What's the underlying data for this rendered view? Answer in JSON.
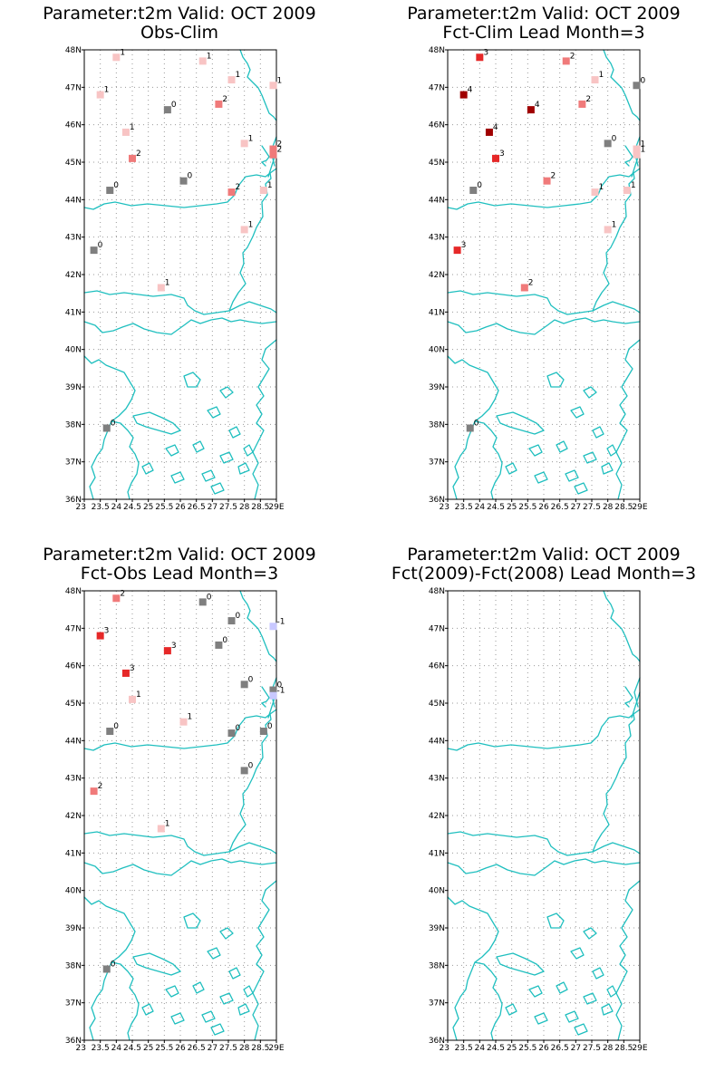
{
  "lat_ticks": [
    "48N",
    "47N",
    "46N",
    "45N",
    "44N",
    "43N",
    "42N",
    "41N",
    "40N",
    "39N",
    "38N",
    "37N",
    "36N"
  ],
  "lon_ticks": [
    "23",
    "23.5",
    "24",
    "24.5",
    "25",
    "25.5",
    "26",
    "26.5",
    "27",
    "27.5",
    "28",
    "28.5",
    "29E"
  ],
  "extent": {
    "lon_min": 23,
    "lon_max": 29,
    "lat_min": 36,
    "lat_max": 48
  },
  "colors": {
    "-1": "#c8c8ff",
    "0": "#7f7f7f",
    "1": "#f8c4c4",
    "2": "#f07a7a",
    "3": "#e62828",
    "4": "#a00000",
    "coast": "#1fbfbf",
    "grid": "#999999"
  },
  "panels": [
    {
      "title1": "Parameter:t2m Valid: OCT 2009",
      "title2": "Obs-Clim",
      "stations": [
        {
          "lon": 24.0,
          "lat": 47.8,
          "v": 1
        },
        {
          "lon": 26.7,
          "lat": 47.7,
          "v": 1
        },
        {
          "lon": 27.6,
          "lat": 47.2,
          "v": 1
        },
        {
          "lon": 28.9,
          "lat": 47.05,
          "v": 1
        },
        {
          "lon": 23.5,
          "lat": 46.8,
          "v": 1
        },
        {
          "lon": 25.6,
          "lat": 46.4,
          "v": 0
        },
        {
          "lon": 27.2,
          "lat": 46.55,
          "v": 2
        },
        {
          "lon": 24.3,
          "lat": 45.8,
          "v": 1
        },
        {
          "lon": 28.0,
          "lat": 45.5,
          "v": 1
        },
        {
          "lon": 28.9,
          "lat": 45.35,
          "v": 2
        },
        {
          "lon": 28.9,
          "lat": 45.2,
          "v": 2
        },
        {
          "lon": 24.5,
          "lat": 45.1,
          "v": 2
        },
        {
          "lon": 26.1,
          "lat": 44.5,
          "v": 0
        },
        {
          "lon": 23.8,
          "lat": 44.25,
          "v": 0
        },
        {
          "lon": 27.6,
          "lat": 44.2,
          "v": 2
        },
        {
          "lon": 28.6,
          "lat": 44.25,
          "v": 1
        },
        {
          "lon": 28.0,
          "lat": 43.2,
          "v": 1
        },
        {
          "lon": 23.3,
          "lat": 42.65,
          "v": 0
        },
        {
          "lon": 25.4,
          "lat": 41.65,
          "v": 1
        },
        {
          "lon": 23.7,
          "lat": 37.9,
          "v": 0
        }
      ]
    },
    {
      "title1": "Parameter:t2m Valid: OCT 2009",
      "title2": "Fct-Clim Lead Month=3",
      "stations": [
        {
          "lon": 24.0,
          "lat": 47.8,
          "v": 3
        },
        {
          "lon": 26.7,
          "lat": 47.7,
          "v": 2
        },
        {
          "lon": 27.6,
          "lat": 47.2,
          "v": 1
        },
        {
          "lon": 28.9,
          "lat": 47.05,
          "v": 0
        },
        {
          "lon": 23.5,
          "lat": 46.8,
          "v": 4
        },
        {
          "lon": 25.6,
          "lat": 46.4,
          "v": 4
        },
        {
          "lon": 27.2,
          "lat": 46.55,
          "v": 2
        },
        {
          "lon": 24.3,
          "lat": 45.8,
          "v": 4
        },
        {
          "lon": 28.0,
          "lat": 45.5,
          "v": 0
        },
        {
          "lon": 28.9,
          "lat": 45.35,
          "v": 1
        },
        {
          "lon": 28.9,
          "lat": 45.2,
          "v": 1
        },
        {
          "lon": 24.5,
          "lat": 45.1,
          "v": 3
        },
        {
          "lon": 26.1,
          "lat": 44.5,
          "v": 2
        },
        {
          "lon": 23.8,
          "lat": 44.25,
          "v": 0
        },
        {
          "lon": 27.6,
          "lat": 44.2,
          "v": 1
        },
        {
          "lon": 28.6,
          "lat": 44.25,
          "v": 1
        },
        {
          "lon": 28.0,
          "lat": 43.2,
          "v": 1
        },
        {
          "lon": 23.3,
          "lat": 42.65,
          "v": 3
        },
        {
          "lon": 25.4,
          "lat": 41.65,
          "v": 2
        },
        {
          "lon": 23.7,
          "lat": 37.9,
          "v": 0
        }
      ]
    },
    {
      "title1": "Parameter:t2m Valid: OCT 2009",
      "title2": "Fct-Obs Lead Month=3",
      "stations": [
        {
          "lon": 24.0,
          "lat": 47.8,
          "v": 2
        },
        {
          "lon": 26.7,
          "lat": 47.7,
          "v": 0
        },
        {
          "lon": 27.6,
          "lat": 47.2,
          "v": 0
        },
        {
          "lon": 28.9,
          "lat": 47.05,
          "v": -1
        },
        {
          "lon": 23.5,
          "lat": 46.8,
          "v": 3
        },
        {
          "lon": 25.6,
          "lat": 46.4,
          "v": 3
        },
        {
          "lon": 27.2,
          "lat": 46.55,
          "v": 0
        },
        {
          "lon": 24.3,
          "lat": 45.8,
          "v": 3
        },
        {
          "lon": 28.0,
          "lat": 45.5,
          "v": 0
        },
        {
          "lon": 28.9,
          "lat": 45.35,
          "v": 0
        },
        {
          "lon": 28.9,
          "lat": 45.2,
          "v": -1
        },
        {
          "lon": 24.5,
          "lat": 45.1,
          "v": 1
        },
        {
          "lon": 26.1,
          "lat": 44.5,
          "v": 1
        },
        {
          "lon": 23.8,
          "lat": 44.25,
          "v": 0
        },
        {
          "lon": 27.6,
          "lat": 44.2,
          "v": 0
        },
        {
          "lon": 28.6,
          "lat": 44.25,
          "v": 0
        },
        {
          "lon": 28.0,
          "lat": 43.2,
          "v": 0
        },
        {
          "lon": 23.3,
          "lat": 42.65,
          "v": 2
        },
        {
          "lon": 25.4,
          "lat": 41.65,
          "v": 1
        },
        {
          "lon": 23.7,
          "lat": 37.9,
          "v": 0
        }
      ]
    },
    {
      "title1": "Parameter:t2m Valid: OCT 2009",
      "title2": "Fct(2009)-Fct(2008) Lead Month=3",
      "stations": []
    }
  ]
}
